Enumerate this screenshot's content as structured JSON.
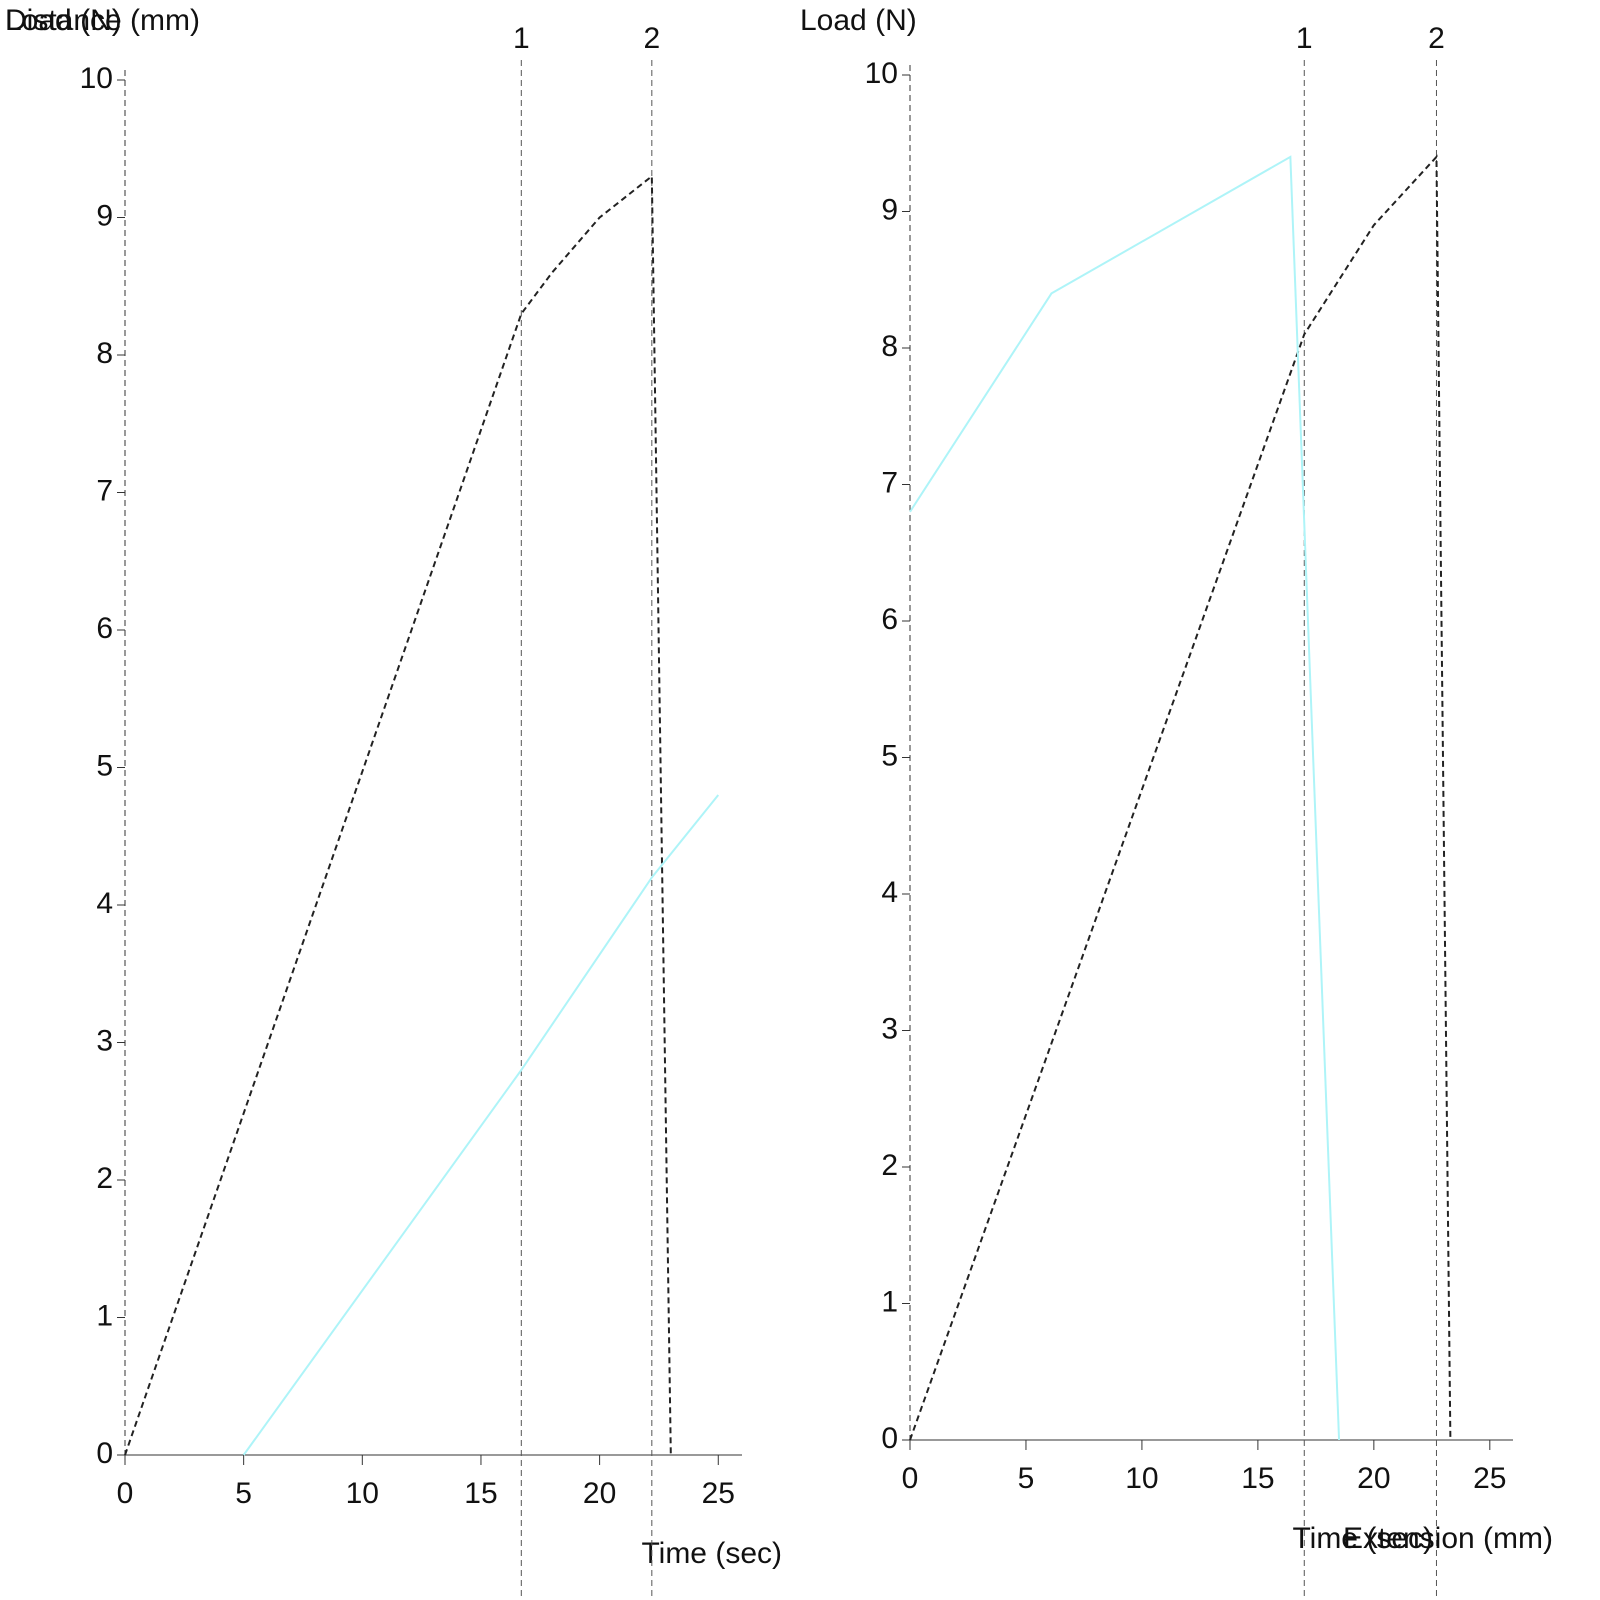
{
  "chart_data": [
    {
      "type": "line",
      "y_label": "Load (N)",
      "y2_label": "Distance (mm)",
      "x_label": "Time (sec)",
      "xlim": [
        0,
        26
      ],
      "xticks": [
        0,
        5,
        10,
        15,
        20,
        25
      ],
      "ylim": [
        0,
        10
      ],
      "yticks": [
        0,
        1,
        2,
        3,
        4,
        5,
        6,
        7,
        8,
        9,
        10
      ],
      "y2lim": [
        0,
        10
      ],
      "markers": [
        {
          "x": 16.7,
          "label": "1"
        },
        {
          "x": 22.2,
          "label": "2"
        }
      ],
      "series": [
        {
          "name": "Load",
          "color": "#222222",
          "dashed": true,
          "x": [
            0,
            16.7,
            18,
            20,
            22.2,
            23
          ],
          "values": [
            0,
            8.3,
            8.6,
            9.0,
            9.3,
            0
          ]
        },
        {
          "name": "Distance",
          "color": "#aef4f8",
          "axis": "y2",
          "x": [
            5,
            16.7,
            22.2,
            25
          ],
          "values": [
            0,
            2.8,
            4.2,
            4.8
          ]
        }
      ]
    },
    {
      "type": "line",
      "y_label": "Load (N)",
      "x_label": "Extension (mm)",
      "x2_label": "Time (sec)",
      "xlim": [
        0,
        26
      ],
      "xticks": [
        0,
        5,
        10,
        15,
        20,
        25
      ],
      "ylim": [
        0,
        10
      ],
      "yticks": [
        0,
        1,
        2,
        3,
        4,
        5,
        6,
        7,
        8,
        9,
        10
      ],
      "markers": [
        {
          "x": 17.0,
          "label": "1"
        },
        {
          "x": 22.7,
          "label": "2"
        }
      ],
      "series": [
        {
          "name": "Load",
          "color": "#222222",
          "dashed": true,
          "x": [
            0,
            17.0,
            20,
            22.7,
            23.3
          ],
          "values": [
            0,
            8.1,
            8.9,
            9.4,
            0
          ]
        },
        {
          "name": "Time",
          "color": "#aef4f8",
          "x": [
            0,
            6.1,
            16.4,
            18.5
          ],
          "values": [
            6.8,
            8.4,
            9.4,
            0
          ]
        }
      ]
    }
  ]
}
